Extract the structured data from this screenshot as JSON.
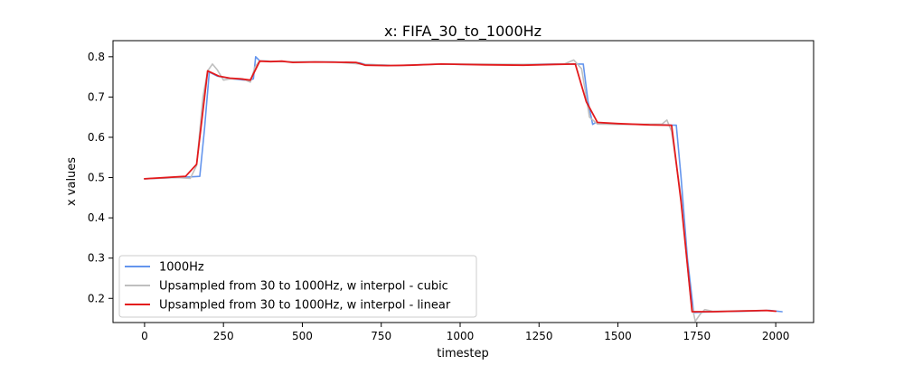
{
  "chart_data": {
    "type": "line",
    "title": "x: FIFA_30_to_1000Hz",
    "xlabel": "timestep",
    "ylabel": "x values",
    "xlim": [
      -100,
      2120
    ],
    "ylim": [
      0.14,
      0.84
    ],
    "x_ticks": [
      0,
      250,
      500,
      750,
      1000,
      1250,
      1500,
      1750,
      2000
    ],
    "y_ticks": [
      0.2,
      0.3,
      0.4,
      0.5,
      0.6,
      0.7,
      0.8
    ],
    "grid": false,
    "legend_position": "lower-left",
    "series": [
      {
        "name": "1000Hz",
        "color": "#6495ed",
        "points": [
          [
            0,
            0.497
          ],
          [
            130,
            0.501
          ],
          [
            175,
            0.503
          ],
          [
            190,
            0.62
          ],
          [
            205,
            0.762
          ],
          [
            230,
            0.752
          ],
          [
            280,
            0.745
          ],
          [
            330,
            0.741
          ],
          [
            345,
            0.745
          ],
          [
            352,
            0.8
          ],
          [
            365,
            0.79
          ],
          [
            420,
            0.788
          ],
          [
            600,
            0.787
          ],
          [
            680,
            0.785
          ],
          [
            700,
            0.781
          ],
          [
            800,
            0.778
          ],
          [
            900,
            0.781
          ],
          [
            950,
            0.782
          ],
          [
            1000,
            0.781
          ],
          [
            1200,
            0.781
          ],
          [
            1300,
            0.782
          ],
          [
            1390,
            0.782
          ],
          [
            1405,
            0.69
          ],
          [
            1420,
            0.632
          ],
          [
            1430,
            0.637
          ],
          [
            1500,
            0.633
          ],
          [
            1650,
            0.631
          ],
          [
            1670,
            0.63
          ],
          [
            1685,
            0.63
          ],
          [
            1700,
            0.5
          ],
          [
            1720,
            0.3
          ],
          [
            1740,
            0.165
          ],
          [
            1800,
            0.167
          ],
          [
            1900,
            0.168
          ],
          [
            1980,
            0.17
          ],
          [
            2020,
            0.167
          ]
        ]
      },
      {
        "name": "Upsampled from 30 to 1000Hz, w interpol - cubic",
        "color": "#bfbfbf",
        "points": [
          [
            0,
            0.497
          ],
          [
            100,
            0.5
          ],
          [
            145,
            0.498
          ],
          [
            165,
            0.53
          ],
          [
            185,
            0.7
          ],
          [
            200,
            0.765
          ],
          [
            215,
            0.782
          ],
          [
            230,
            0.768
          ],
          [
            250,
            0.742
          ],
          [
            270,
            0.745
          ],
          [
            310,
            0.745
          ],
          [
            335,
            0.737
          ],
          [
            350,
            0.775
          ],
          [
            365,
            0.79
          ],
          [
            420,
            0.788
          ],
          [
            600,
            0.787
          ],
          [
            700,
            0.781
          ],
          [
            800,
            0.778
          ],
          [
            950,
            0.782
          ],
          [
            1250,
            0.781
          ],
          [
            1330,
            0.782
          ],
          [
            1360,
            0.792
          ],
          [
            1385,
            0.77
          ],
          [
            1410,
            0.65
          ],
          [
            1435,
            0.633
          ],
          [
            1500,
            0.632
          ],
          [
            1640,
            0.633
          ],
          [
            1655,
            0.643
          ],
          [
            1670,
            0.615
          ],
          [
            1700,
            0.45
          ],
          [
            1730,
            0.2
          ],
          [
            1745,
            0.143
          ],
          [
            1760,
            0.16
          ],
          [
            1775,
            0.172
          ],
          [
            1800,
            0.168
          ],
          [
            1980,
            0.17
          ]
        ]
      },
      {
        "name": "Upsampled from 30 to 1000Hz, w interpol - linear",
        "color": "#e31a1c",
        "points": [
          [
            0,
            0.497
          ],
          [
            130,
            0.503
          ],
          [
            165,
            0.533
          ],
          [
            200,
            0.765
          ],
          [
            235,
            0.752
          ],
          [
            270,
            0.747
          ],
          [
            305,
            0.745
          ],
          [
            335,
            0.742
          ],
          [
            365,
            0.789
          ],
          [
            400,
            0.788
          ],
          [
            435,
            0.789
          ],
          [
            470,
            0.786
          ],
          [
            540,
            0.787
          ],
          [
            670,
            0.786
          ],
          [
            700,
            0.779
          ],
          [
            770,
            0.778
          ],
          [
            840,
            0.779
          ],
          [
            940,
            0.782
          ],
          [
            1070,
            0.78
          ],
          [
            1200,
            0.779
          ],
          [
            1300,
            0.781
          ],
          [
            1365,
            0.782
          ],
          [
            1400,
            0.688
          ],
          [
            1435,
            0.637
          ],
          [
            1500,
            0.634
          ],
          [
            1600,
            0.631
          ],
          [
            1670,
            0.63
          ],
          [
            1700,
            0.44
          ],
          [
            1735,
            0.167
          ],
          [
            1800,
            0.167
          ],
          [
            1970,
            0.17
          ],
          [
            2000,
            0.168
          ]
        ]
      }
    ]
  }
}
